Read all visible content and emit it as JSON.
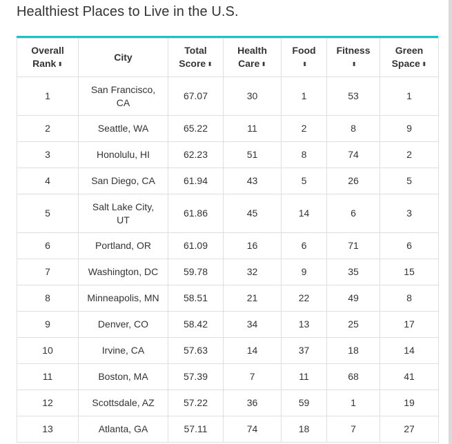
{
  "page": {
    "title": "Healthiest Places to Live in the U.S."
  },
  "table": {
    "sort_icon": "⬍",
    "columns": [
      {
        "line1": "Overall",
        "line2": "Rank"
      },
      {
        "line1": "City",
        "line2": ""
      },
      {
        "line1": "Total",
        "line2": "Score"
      },
      {
        "line1": "Health",
        "line2": "Care"
      },
      {
        "line1": "Food",
        "line2": ""
      },
      {
        "line1": "Fitness",
        "line2": ""
      },
      {
        "line1": "Green",
        "line2": "Space"
      }
    ],
    "rows": [
      {
        "rank": "1",
        "city": "San Francisco, CA",
        "score": "67.07",
        "health": "30",
        "food": "1",
        "fitness": "53",
        "green": "1"
      },
      {
        "rank": "2",
        "city": "Seattle, WA",
        "score": "65.22",
        "health": "11",
        "food": "2",
        "fitness": "8",
        "green": "9"
      },
      {
        "rank": "3",
        "city": "Honolulu, HI",
        "score": "62.23",
        "health": "51",
        "food": "8",
        "fitness": "74",
        "green": "2"
      },
      {
        "rank": "4",
        "city": "San Diego, CA",
        "score": "61.94",
        "health": "43",
        "food": "5",
        "fitness": "26",
        "green": "5"
      },
      {
        "rank": "5",
        "city": "Salt Lake City, UT",
        "score": "61.86",
        "health": "45",
        "food": "14",
        "fitness": "6",
        "green": "3"
      },
      {
        "rank": "6",
        "city": "Portland, OR",
        "score": "61.09",
        "health": "16",
        "food": "6",
        "fitness": "71",
        "green": "6"
      },
      {
        "rank": "7",
        "city": "Washington, DC",
        "score": "59.78",
        "health": "32",
        "food": "9",
        "fitness": "35",
        "green": "15"
      },
      {
        "rank": "8",
        "city": "Minneapolis, MN",
        "score": "58.51",
        "health": "21",
        "food": "22",
        "fitness": "49",
        "green": "8"
      },
      {
        "rank": "9",
        "city": "Denver, CO",
        "score": "58.42",
        "health": "34",
        "food": "13",
        "fitness": "25",
        "green": "17"
      },
      {
        "rank": "10",
        "city": "Irvine, CA",
        "score": "57.63",
        "health": "14",
        "food": "37",
        "fitness": "18",
        "green": "14"
      },
      {
        "rank": "11",
        "city": "Boston, MA",
        "score": "57.39",
        "health": "7",
        "food": "11",
        "fitness": "68",
        "green": "41"
      },
      {
        "rank": "12",
        "city": "Scottsdale, AZ",
        "score": "57.22",
        "health": "36",
        "food": "59",
        "fitness": "1",
        "green": "19"
      },
      {
        "rank": "13",
        "city": "Atlanta, GA",
        "score": "57.11",
        "health": "74",
        "food": "18",
        "fitness": "7",
        "green": "27"
      }
    ]
  },
  "colors": {
    "accent": "#17c4c4",
    "border": "#dedede",
    "text": "#333333"
  }
}
